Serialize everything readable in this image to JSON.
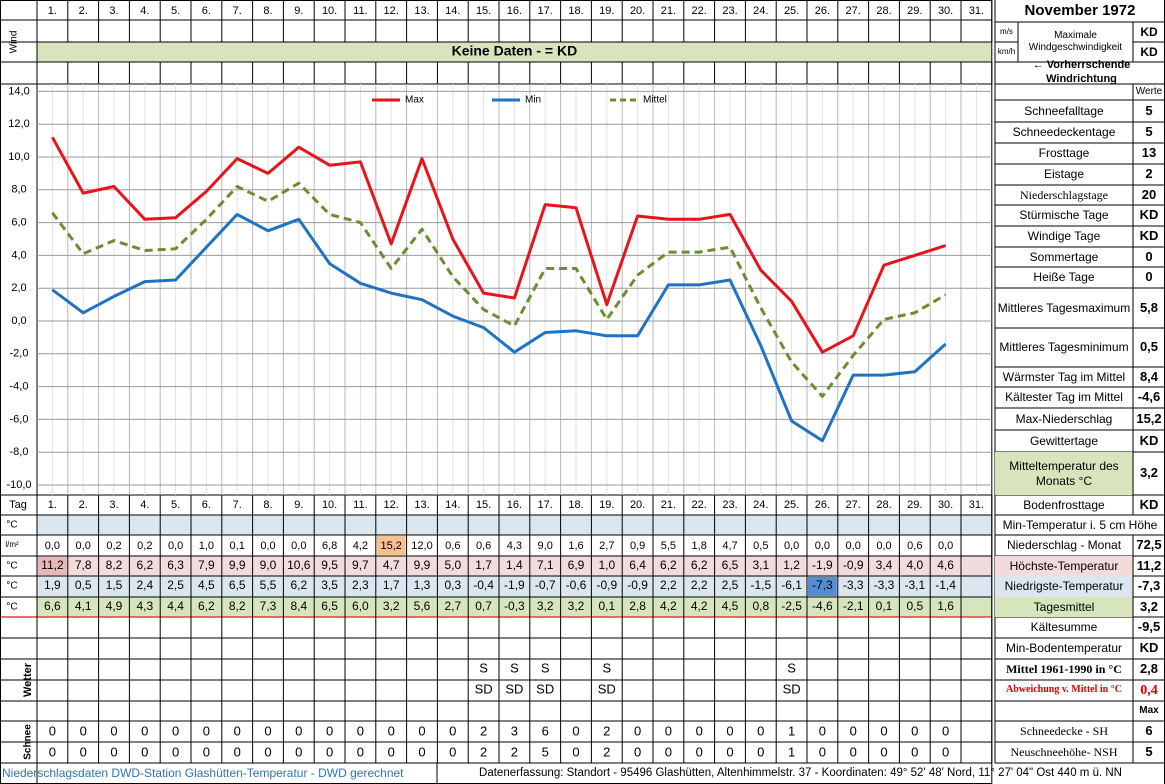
{
  "chart_data": {
    "type": "line",
    "categories": [
      "1.",
      "2.",
      "3.",
      "4.",
      "5.",
      "6.",
      "7.",
      "8.",
      "9.",
      "10.",
      "11.",
      "12.",
      "13.",
      "14.",
      "15.",
      "16.",
      "17.",
      "18.",
      "19.",
      "20.",
      "21.",
      "22.",
      "23.",
      "24.",
      "25.",
      "26.",
      "27.",
      "28.",
      "29.",
      "30.",
      "31."
    ],
    "series": [
      {
        "name": "Max",
        "color": "#e8141b",
        "style": "solid",
        "values": [
          11.2,
          7.8,
          8.2,
          6.2,
          6.3,
          7.9,
          9.9,
          9.0,
          10.6,
          9.5,
          9.7,
          4.7,
          9.9,
          5.0,
          1.7,
          1.4,
          7.1,
          6.9,
          1.0,
          6.4,
          6.2,
          6.2,
          6.5,
          3.1,
          1.2,
          -1.9,
          -0.9,
          3.4,
          4.0,
          4.6,
          null
        ],
        "value_labels": [
          "11,2",
          "7,8",
          "8,2",
          "6,2",
          "6,3",
          "7,9",
          "9,9",
          "9,0",
          "10,6",
          "9,5",
          "9,7",
          "4,7",
          "9,9",
          "5,0",
          "1,7",
          "1,4",
          "7,1",
          "6,9",
          "1,0",
          "6,4",
          "6,2",
          "6,2",
          "6,5",
          "3,1",
          "1,2",
          "-1,9",
          "-0,9",
          "3,4",
          "4,0",
          "4,6",
          null
        ]
      },
      {
        "name": "Min",
        "color": "#1f73c2",
        "style": "solid",
        "values": [
          1.9,
          0.5,
          1.5,
          2.4,
          2.5,
          4.5,
          6.5,
          5.5,
          6.2,
          3.5,
          2.3,
          1.7,
          1.3,
          0.3,
          -0.4,
          -1.9,
          -0.7,
          -0.6,
          -0.9,
          -0.9,
          2.2,
          2.2,
          2.5,
          -1.5,
          -6.1,
          -7.3,
          -3.3,
          -3.3,
          -3.1,
          -1.4,
          null
        ],
        "value_labels": [
          "1,9",
          "0,5",
          "1,5",
          "2,4",
          "2,5",
          "4,5",
          "6,5",
          "5,5",
          "6,2",
          "3,5",
          "2,3",
          "1,7",
          "1,3",
          "0,3",
          "-0,4",
          "-1,9",
          "-0,7",
          "-0,6",
          "-0,9",
          "-0,9",
          "2,2",
          "2,2",
          "2,5",
          "-1,5",
          "-6,1",
          "-7,3",
          "-3,3",
          "-3,3",
          "-3,1",
          "-1,4",
          null
        ]
      },
      {
        "name": "Mittel",
        "color": "#6b8e2f",
        "style": "dashed",
        "values": [
          6.6,
          4.1,
          4.9,
          4.3,
          4.4,
          6.2,
          8.2,
          7.3,
          8.4,
          6.5,
          6.0,
          3.2,
          5.6,
          2.7,
          0.7,
          -0.3,
          3.2,
          3.2,
          0.1,
          2.8,
          4.2,
          4.2,
          4.5,
          0.8,
          -2.5,
          -4.6,
          -2.1,
          0.1,
          0.5,
          1.6,
          null
        ],
        "value_labels": [
          "6,6",
          "4,1",
          "4,9",
          "4,3",
          "4,4",
          "6,2",
          "8,2",
          "7,3",
          "8,4",
          "6,5",
          "6,0",
          "3,2",
          "5,6",
          "2,7",
          "0,7",
          "-0,3",
          "3,2",
          "3,2",
          "0,1",
          "2,8",
          "4,2",
          "4,2",
          "4,5",
          "0,8",
          "-2,5",
          "-4,6",
          "-2,1",
          "0,1",
          "0,5",
          "1,6",
          null
        ]
      }
    ],
    "ylim": [
      -10,
      14
    ],
    "yticks": [
      {
        "value": -10,
        "label": "-10,0"
      },
      {
        "value": -8,
        "label": "-8,0"
      },
      {
        "value": -6,
        "label": "-6,0"
      },
      {
        "value": -4,
        "label": "-4,0"
      },
      {
        "value": -2,
        "label": "-2,0"
      },
      {
        "value": 0,
        "label": "0,0"
      },
      {
        "value": 2,
        "label": "2,0"
      },
      {
        "value": 4,
        "label": "4,0"
      },
      {
        "value": 6,
        "label": "6,0"
      },
      {
        "value": 8,
        "label": "8,0"
      },
      {
        "value": 10,
        "label": "10,0"
      },
      {
        "value": 12,
        "label": "12,0"
      },
      {
        "value": 14,
        "label": "14,0"
      }
    ],
    "grid": true,
    "legend": "top"
  },
  "wind": {
    "label": "Wind",
    "note": "Keine Daten -  = KD"
  },
  "table": {
    "tag": "Tag",
    "units": [
      "°C",
      "l/m²",
      "°C",
      "°C",
      "°C"
    ],
    "precip": [
      "0,0",
      "0,0",
      "0,2",
      "0,2",
      "0,0",
      "1,0",
      "0,1",
      "0,0",
      "0,0",
      "6,8",
      "4,2",
      "15,2",
      "12,0",
      "0,6",
      "0,6",
      "4,3",
      "9,0",
      "1,6",
      "2,7",
      "0,9",
      "5,5",
      "1,8",
      "4,7",
      "0,5",
      "0,0",
      "0,0",
      "0,0",
      "0,0",
      "0,6",
      "0,0",
      null
    ],
    "weather_label": "Wetter",
    "weather_1": [
      null,
      null,
      null,
      null,
      null,
      null,
      null,
      null,
      null,
      null,
      null,
      null,
      null,
      null,
      "S",
      "S",
      "S",
      null,
      "S",
      null,
      null,
      null,
      null,
      null,
      "S",
      null,
      null,
      null,
      null,
      null,
      null
    ],
    "weather_2": [
      null,
      null,
      null,
      null,
      null,
      null,
      null,
      null,
      null,
      null,
      null,
      null,
      null,
      null,
      "SD",
      "SD",
      "SD",
      null,
      "SD",
      null,
      null,
      null,
      null,
      null,
      "SD",
      null,
      null,
      null,
      null,
      null,
      null
    ],
    "snow_label": "Schnee",
    "snow_sh": [
      0,
      0,
      0,
      0,
      0,
      0,
      0,
      0,
      0,
      0,
      0,
      0,
      0,
      0,
      2,
      3,
      6,
      0,
      2,
      0,
      0,
      0,
      0,
      0,
      1,
      0,
      0,
      0,
      0,
      0,
      null
    ],
    "snow_nsh": [
      0,
      0,
      0,
      0,
      0,
      0,
      0,
      0,
      0,
      0,
      0,
      0,
      0,
      0,
      2,
      2,
      5,
      0,
      2,
      0,
      0,
      0,
      0,
      0,
      1,
      0,
      0,
      0,
      0,
      0,
      null
    ]
  },
  "side": {
    "title": "November 1972",
    "ms": "m/s",
    "kmh": "km/h",
    "max_wind": "Maximale Windgeschwindigkeit",
    "max_wind_ms": "KD",
    "max_wind_kmh": "KD",
    "direction": "← Vorherrschende Windrichtung",
    "values_header": "Werte",
    "rows": [
      {
        "label": "Schneefalltage",
        "value": "5"
      },
      {
        "label": "Schneedeckentage",
        "value": "5"
      },
      {
        "label": "Frosttage",
        "value": "13"
      },
      {
        "label": "Eistage",
        "value": "2"
      },
      {
        "label": "Niederschlagstage",
        "value": "20"
      },
      {
        "label": "Stürmische Tage",
        "value": "KD"
      },
      {
        "label": "Windige Tage",
        "value": "KD"
      },
      {
        "label": "Sommertage",
        "value": "0"
      },
      {
        "label": "Heiße Tage",
        "value": "0"
      },
      {
        "label": "Mittleres Tagesmaximum",
        "value": "5,8"
      },
      {
        "label": "Mittleres Tagesminimum",
        "value": "0,5"
      },
      {
        "label": "Wärmster Tag im Mittel",
        "value": "8,4"
      },
      {
        "label": "Kältester Tag im Mittel",
        "value": "-4,6"
      },
      {
        "label": "Max-Niederschlag",
        "value": "15,2"
      },
      {
        "label": "Gewittertage",
        "value": "KD"
      },
      {
        "label": "Mitteltemperatur des Monats °C",
        "value": "3,2"
      },
      {
        "label": "Bodenfrosttage",
        "value": "KD"
      },
      {
        "label": "Min-Temperatur i. 5 cm Höhe"
      },
      {
        "label": "Niederschlag - Monat",
        "value": "72,5"
      },
      {
        "label": "Höchste-Temperatur",
        "value": "11,2"
      },
      {
        "label": "Niedrigste-Temperatur",
        "value": "-7,3"
      },
      {
        "label": "Tagesmittel",
        "value": "3,2"
      },
      {
        "label": "Kältesumme",
        "value": "-9,5"
      },
      {
        "label": "Min-Bodentemperatur",
        "value": "KD"
      },
      {
        "label": "Mittel 1961-1990 in °C",
        "value": "2,8"
      },
      {
        "label": "Abweichung v. Mittel in °C",
        "value": "0,4"
      },
      {
        "value": "Max"
      },
      {
        "label": "Schneedecke -  SH",
        "value": "6"
      },
      {
        "label": "Neuschneehöhe- NSH",
        "value": "5"
      }
    ]
  },
  "footer": {
    "left": "Niederschlagsdaten DWD-Station Glashütten-Temperatur -  DWD gerechnet",
    "right": "Datenerfassung: Standort -  95496 Glashütten, Altenhimmelstr. 37 - Koordinaten:  49° 52' 48' Nord,   11° 27' 04\" Ost   440 m ü. NN"
  }
}
